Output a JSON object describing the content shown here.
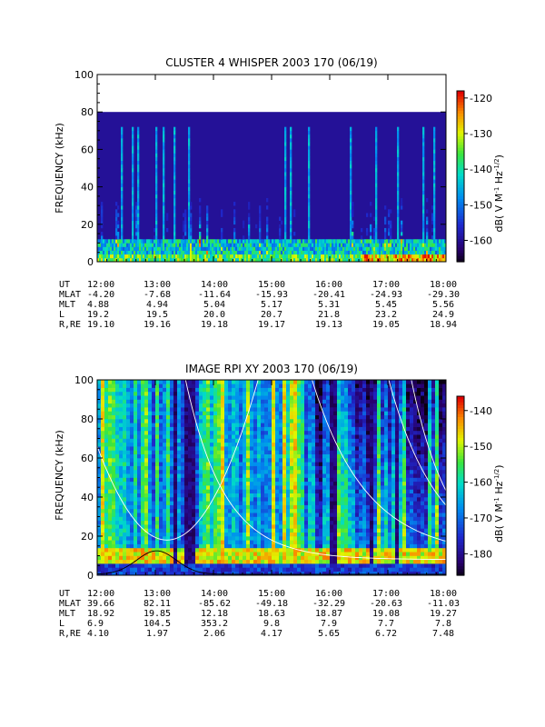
{
  "chart_data": [
    {
      "type": "heatmap",
      "title": "CLUSTER 4 WHISPER 2003 170 (06/19)",
      "ylabel": "FREQUENCY (kHz)",
      "ylim": [
        0,
        100
      ],
      "yticks": [
        "0",
        "20",
        "40",
        "60",
        "80",
        "100"
      ],
      "xlim_hours": [
        12,
        18
      ],
      "xticks": [
        "12:00",
        "13:00",
        "14:00",
        "15:00",
        "16:00",
        "17:00",
        "18:00"
      ],
      "data_upper_freq_khz": 80,
      "colorbar": {
        "label_prefix": "dB( V M",
        "label_sup1": "-1",
        "label_mid": " Hz",
        "label_sup2": "-1/2",
        "label_suffix": ")",
        "range": [
          -166,
          -118
        ],
        "ticks": [
          "-120",
          "-130",
          "-140",
          "-150",
          "-160"
        ],
        "tick_values": [
          -120,
          -130,
          -140,
          -150,
          -160
        ]
      },
      "ephemeris": [
        {
          "name": "UT",
          "values": [
            "12:00",
            "13:00",
            "14:00",
            "15:00",
            "16:00",
            "17:00",
            "18:00"
          ]
        },
        {
          "name": "MLAT",
          "values": [
            "-4.20",
            "-7.68",
            "-11.64",
            "-15.93",
            "-20.41",
            "-24.93",
            "-29.30"
          ]
        },
        {
          "name": "MLT",
          "values": [
            "4.88",
            "4.94",
            "5.04",
            "5.17",
            "5.31",
            "5.45",
            "5.56"
          ]
        },
        {
          "name": "L",
          "values": [
            "19.2",
            "19.5",
            "20.0",
            "20.7",
            "21.8",
            "23.2",
            "24.9"
          ]
        },
        {
          "name": "R,RE",
          "values": [
            "19.10",
            "19.16",
            "19.18",
            "19.17",
            "19.13",
            "19.05",
            "18.94"
          ]
        }
      ]
    },
    {
      "type": "heatmap",
      "title": "IMAGE RPI XY 2003 170 (06/19)",
      "ylabel": "FREQUENCY (kHz)",
      "ylim": [
        0,
        100
      ],
      "yticks": [
        "0",
        "20",
        "40",
        "60",
        "80",
        "100"
      ],
      "xlim_hours": [
        12,
        18
      ],
      "xticks": [
        "12:00",
        "13:00",
        "14:00",
        "15:00",
        "16:00",
        "17:00",
        "18:00"
      ],
      "colorbar": {
        "label_prefix": "dB( V M",
        "label_sup1": "-1",
        "label_mid": " Hz",
        "label_sup2": "-1/2",
        "label_suffix": ")",
        "range": [
          -186,
          -136
        ],
        "ticks": [
          "-140",
          "-150",
          "-160",
          "-170",
          "-180"
        ],
        "tick_values": [
          -140,
          -150,
          -160,
          -170,
          -180
        ]
      },
      "ephemeris": [
        {
          "name": "UT",
          "values": [
            "12:00",
            "13:00",
            "14:00",
            "15:00",
            "16:00",
            "17:00",
            "18:00"
          ]
        },
        {
          "name": "MLAT",
          "values": [
            "39.66",
            "82.11",
            "-85.62",
            "-49.18",
            "-32.29",
            "-20.63",
            "-11.03"
          ]
        },
        {
          "name": "MLT",
          "values": [
            "18.92",
            "19.85",
            "12.18",
            "18.63",
            "18.87",
            "19.08",
            "19.27"
          ]
        },
        {
          "name": "L",
          "values": [
            "6.9",
            "104.5",
            "353.2",
            "9.8",
            "7.9",
            "7.7",
            "7.8"
          ]
        },
        {
          "name": "R,RE",
          "values": [
            "4.10",
            "1.97",
            "2.06",
            "4.17",
            "5.65",
            "6.72",
            "7.48"
          ]
        }
      ]
    }
  ]
}
